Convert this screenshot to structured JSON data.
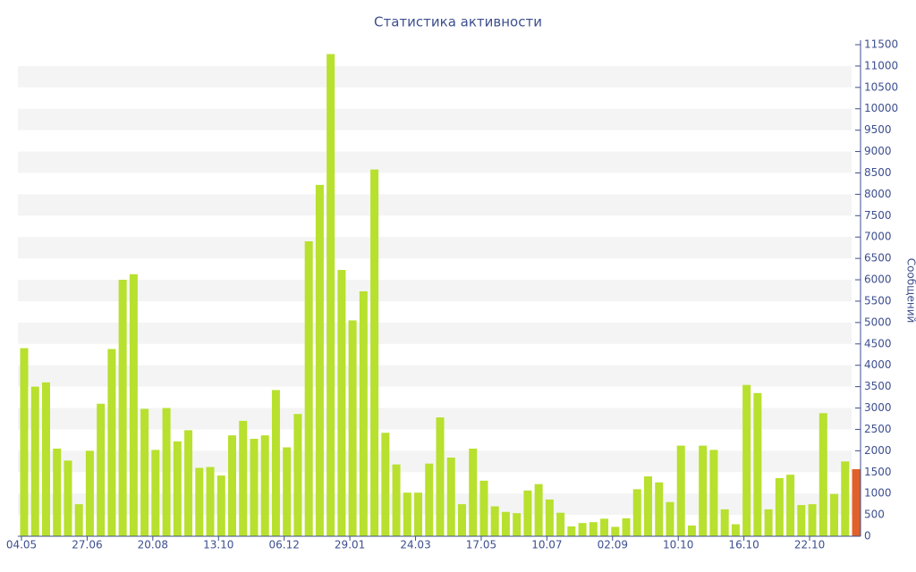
{
  "chart_data": {
    "type": "bar",
    "title": "Статистика активности",
    "y_label": "Сообщений",
    "categories": [
      "04.05",
      null,
      null,
      null,
      null,
      null,
      "27.06",
      null,
      null,
      null,
      null,
      null,
      "20.08",
      null,
      null,
      null,
      null,
      null,
      "13.10",
      null,
      null,
      null,
      null,
      null,
      "06.12",
      null,
      null,
      null,
      null,
      null,
      "29.01",
      null,
      null,
      null,
      null,
      null,
      "24.03",
      null,
      null,
      null,
      null,
      null,
      "17.05",
      null,
      null,
      null,
      null,
      null,
      "10.07",
      null,
      null,
      null,
      null,
      null,
      "02.09",
      null,
      null,
      null,
      null,
      null,
      "10.10",
      null,
      null,
      null,
      null,
      null,
      "16.10",
      null,
      null,
      null,
      null,
      null,
      "22.10",
      null,
      null,
      null,
      null
    ],
    "values": [
      4400,
      3500,
      3600,
      2050,
      1770,
      750,
      2000,
      3100,
      4380,
      6000,
      6130,
      2980,
      2020,
      3000,
      2220,
      2480,
      1600,
      1620,
      1420,
      2360,
      2700,
      2280,
      2360,
      3420,
      2080,
      2860,
      6900,
      8220,
      11280,
      6230,
      5050,
      5730,
      8580,
      2420,
      1680,
      1020,
      1020,
      1700,
      2780,
      1840,
      750,
      2050,
      1300,
      700,
      570,
      540,
      1070,
      1220,
      860,
      550,
      230,
      310,
      330,
      410,
      220,
      420,
      1100,
      1400,
      1260,
      800,
      2120,
      250,
      2120,
      2020,
      630,
      280,
      3540,
      3350,
      630,
      1360,
      1440,
      730,
      750,
      2880,
      990,
      1750,
      1570
    ],
    "colors": [
      "#b8e02e",
      "#b8e02e",
      "#b8e02e",
      "#b8e02e",
      "#b8e02e",
      "#b8e02e",
      "#b8e02e",
      "#b8e02e",
      "#b8e02e",
      "#b8e02e",
      "#b8e02e",
      "#b8e02e",
      "#b8e02e",
      "#b8e02e",
      "#b8e02e",
      "#b8e02e",
      "#b8e02e",
      "#b8e02e",
      "#b8e02e",
      "#b8e02e",
      "#b8e02e",
      "#b8e02e",
      "#b8e02e",
      "#b8e02e",
      "#b8e02e",
      "#b8e02e",
      "#b8e02e",
      "#b8e02e",
      "#b8e02e",
      "#b8e02e",
      "#b8e02e",
      "#b8e02e",
      "#b8e02e",
      "#b8e02e",
      "#b8e02e",
      "#b8e02e",
      "#b8e02e",
      "#b8e02e",
      "#b8e02e",
      "#b8e02e",
      "#b8e02e",
      "#b8e02e",
      "#b8e02e",
      "#b8e02e",
      "#b8e02e",
      "#b8e02e",
      "#b8e02e",
      "#b8e02e",
      "#b8e02e",
      "#b8e02e",
      "#b8e02e",
      "#b8e02e",
      "#b8e02e",
      "#b8e02e",
      "#b8e02e",
      "#b8e02e",
      "#b8e02e",
      "#b8e02e",
      "#b8e02e",
      "#b8e02e",
      "#b8e02e",
      "#b8e02e",
      "#b8e02e",
      "#b8e02e",
      "#b8e02e",
      "#b8e02e",
      "#b8e02e",
      "#b8e02e",
      "#b8e02e",
      "#b8e02e",
      "#b8e02e",
      "#b8e02e",
      "#b8e02e",
      "#b8e02e",
      "#b8e02e",
      "#b8e02e",
      "#e0622a"
    ],
    "ylim": [
      0,
      11500
    ],
    "yticks": [
      0,
      500,
      1000,
      1500,
      2000,
      2500,
      3000,
      3500,
      4000,
      4500,
      5000,
      5500,
      6000,
      6500,
      7000,
      7500,
      8000,
      8500,
      9000,
      9500,
      10000,
      10500,
      11000,
      11500
    ],
    "grid": "banded",
    "y_axis_side": "right"
  }
}
